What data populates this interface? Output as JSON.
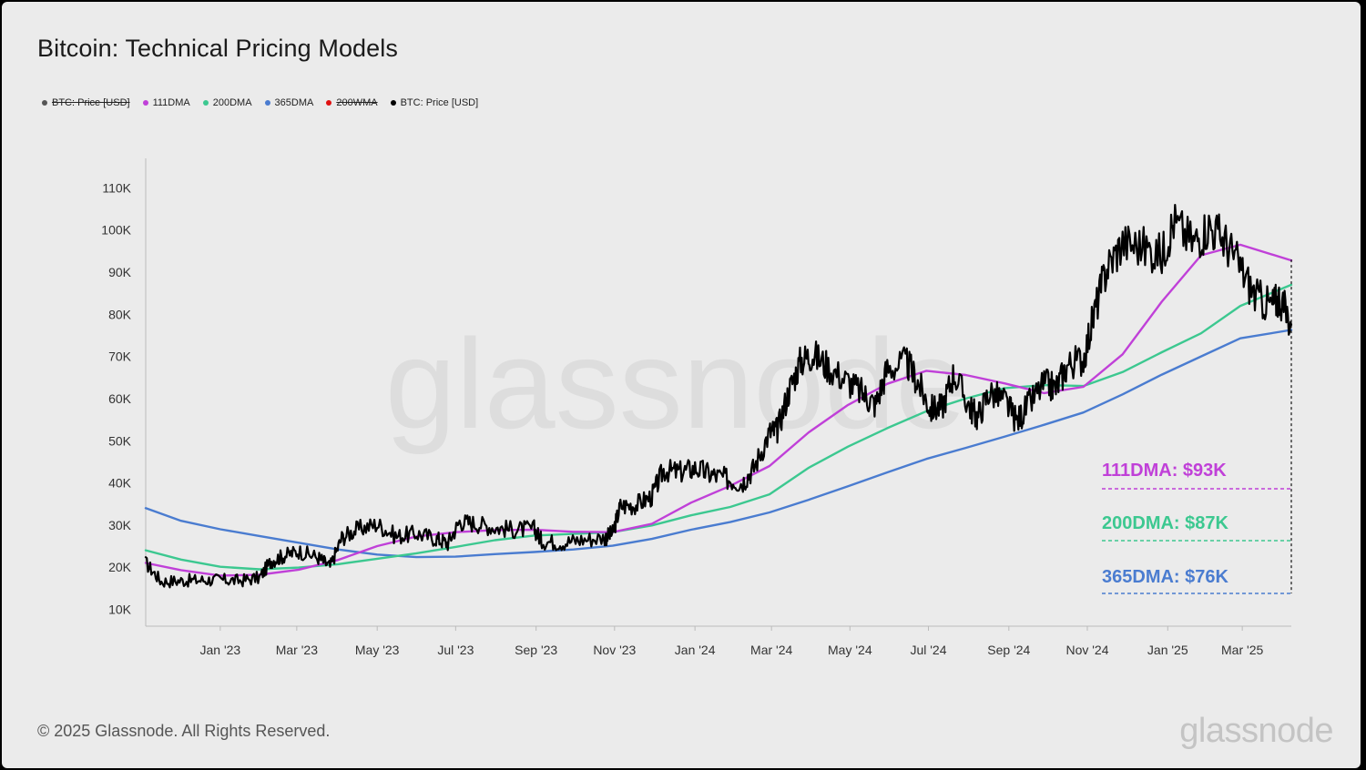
{
  "title": "Bitcoin: Technical Pricing Models",
  "legend": [
    {
      "label": "BTC: Price [USD]",
      "color": "#555555",
      "disabled": true
    },
    {
      "label": "111DMA",
      "color": "#c040d8",
      "disabled": false
    },
    {
      "label": "200DMA",
      "color": "#3cc890",
      "disabled": false
    },
    {
      "label": "365DMA",
      "color": "#4a7cd0",
      "disabled": false
    },
    {
      "label": "200WMA",
      "color": "#e01010",
      "disabled": true
    },
    {
      "label": "BTC: Price [USD]",
      "color": "#000000",
      "disabled": false
    }
  ],
  "footer": {
    "copyright": "© 2025 Glassnode. All Rights Reserved.",
    "brand": "glassnode"
  },
  "watermark": "glassnode",
  "chart_data": {
    "type": "line",
    "x_ticks": [
      {
        "label": "Jan '23",
        "t": 1.0
      },
      {
        "label": "Mar '23",
        "t": 2.95
      },
      {
        "label": "May '23",
        "t": 5.0
      },
      {
        "label": "Jul '23",
        "t": 7.0
      },
      {
        "label": "Sep '23",
        "t": 9.05
      },
      {
        "label": "Nov '23",
        "t": 11.05
      },
      {
        "label": "Jan '24",
        "t": 13.1
      },
      {
        "label": "Mar '24",
        "t": 15.05
      },
      {
        "label": "May '24",
        "t": 17.05
      },
      {
        "label": "Jul '24",
        "t": 19.05
      },
      {
        "label": "Sep '24",
        "t": 21.1
      },
      {
        "label": "Nov '24",
        "t": 23.1
      },
      {
        "label": "Jan '25",
        "t": 25.15
      },
      {
        "label": "Mar '25",
        "t": 27.05
      }
    ],
    "x_range": [
      -0.9,
      28.3
    ],
    "y_ticks": [
      {
        "label": "10K",
        "v": 10000
      },
      {
        "label": "20K",
        "v": 20000
      },
      {
        "label": "30K",
        "v": 30000
      },
      {
        "label": "40K",
        "v": 40000
      },
      {
        "label": "50K",
        "v": 50000
      },
      {
        "label": "60K",
        "v": 60000
      },
      {
        "label": "70K",
        "v": 70000
      },
      {
        "label": "80K",
        "v": 80000
      },
      {
        "label": "90K",
        "v": 90000
      },
      {
        "label": "100K",
        "v": 100000
      },
      {
        "label": "110K",
        "v": 110000
      }
    ],
    "ylim": [
      6000,
      117000
    ],
    "series": [
      {
        "name": "365DMA",
        "color": "#4a7cd0",
        "values": [
          [
            -0.9,
            34000
          ],
          [
            0,
            31000
          ],
          [
            1,
            29000
          ],
          [
            2,
            27400
          ],
          [
            3,
            25800
          ],
          [
            4,
            24200
          ],
          [
            5,
            23000
          ],
          [
            6,
            22400
          ],
          [
            7,
            22500
          ],
          [
            8,
            23100
          ],
          [
            9,
            23600
          ],
          [
            10,
            24200
          ],
          [
            11,
            25100
          ],
          [
            12,
            26700
          ],
          [
            13,
            28900
          ],
          [
            14,
            30700
          ],
          [
            15,
            33000
          ],
          [
            16,
            36000
          ],
          [
            17,
            39200
          ],
          [
            18,
            42500
          ],
          [
            19,
            45700
          ],
          [
            20,
            48300
          ],
          [
            21,
            51000
          ],
          [
            22,
            53800
          ],
          [
            23,
            56700
          ],
          [
            24,
            61000
          ],
          [
            25,
            65700
          ],
          [
            26,
            70000
          ],
          [
            27,
            74300
          ],
          [
            28.3,
            76300
          ]
        ]
      },
      {
        "name": "200DMA",
        "color": "#3cc890",
        "values": [
          [
            -0.9,
            24000
          ],
          [
            0,
            21800
          ],
          [
            1,
            20100
          ],
          [
            2,
            19500
          ],
          [
            3,
            19900
          ],
          [
            4,
            20700
          ],
          [
            5,
            22000
          ],
          [
            6,
            23300
          ],
          [
            7,
            24800
          ],
          [
            8,
            26400
          ],
          [
            9,
            27500
          ],
          [
            10,
            27900
          ],
          [
            11,
            28300
          ],
          [
            12,
            29900
          ],
          [
            13,
            32300
          ],
          [
            14,
            34300
          ],
          [
            15,
            37300
          ],
          [
            16,
            43600
          ],
          [
            17,
            48600
          ],
          [
            18,
            53000
          ],
          [
            19,
            57000
          ],
          [
            20,
            60000
          ],
          [
            21,
            62500
          ],
          [
            22,
            63200
          ],
          [
            23,
            63000
          ],
          [
            24,
            66300
          ],
          [
            25,
            71000
          ],
          [
            26,
            75500
          ],
          [
            27,
            82000
          ],
          [
            28.3,
            87000
          ]
        ]
      },
      {
        "name": "111DMA",
        "color": "#c040d8",
        "values": [
          [
            -0.9,
            21000
          ],
          [
            0,
            19300
          ],
          [
            1,
            18000
          ],
          [
            2,
            18200
          ],
          [
            3,
            19400
          ],
          [
            4,
            21700
          ],
          [
            5,
            25000
          ],
          [
            6,
            27300
          ],
          [
            7,
            28300
          ],
          [
            8,
            28800
          ],
          [
            9,
            28900
          ],
          [
            10,
            28400
          ],
          [
            11,
            28300
          ],
          [
            12,
            30300
          ],
          [
            13,
            35300
          ],
          [
            14,
            39300
          ],
          [
            15,
            44000
          ],
          [
            16,
            52000
          ],
          [
            17,
            58500
          ],
          [
            18,
            63500
          ],
          [
            19,
            66600
          ],
          [
            20,
            65600
          ],
          [
            21,
            63600
          ],
          [
            22,
            61300
          ],
          [
            23,
            62800
          ],
          [
            24,
            70500
          ],
          [
            25,
            83000
          ],
          [
            26,
            94000
          ],
          [
            27,
            96500
          ],
          [
            28.3,
            92800
          ]
        ]
      },
      {
        "name": "BTC: Price [USD]",
        "color": "#000000",
        "values": [
          [
            -0.9,
            21000
          ],
          [
            -0.5,
            16600
          ],
          [
            0,
            16800
          ],
          [
            0.5,
            16900
          ],
          [
            1,
            17000
          ],
          [
            1.5,
            16800
          ],
          [
            2,
            17500
          ],
          [
            2.3,
            21500
          ],
          [
            2.6,
            22600
          ],
          [
            3,
            23800
          ],
          [
            3.5,
            22300
          ],
          [
            3.8,
            20100
          ],
          [
            4.1,
            27000
          ],
          [
            4.5,
            29000
          ],
          [
            5,
            30200
          ],
          [
            5.5,
            27300
          ],
          [
            6,
            28000
          ],
          [
            6.5,
            26800
          ],
          [
            6.8,
            25700
          ],
          [
            7.1,
            30800
          ],
          [
            7.5,
            30400
          ],
          [
            8,
            29400
          ],
          [
            8.5,
            28900
          ],
          [
            9,
            29100
          ],
          [
            9.2,
            26200
          ],
          [
            9.7,
            25800
          ],
          [
            10.2,
            26500
          ],
          [
            10.8,
            27000
          ],
          [
            11.0,
            28000
          ],
          [
            11.2,
            34500
          ],
          [
            11.6,
            34800
          ],
          [
            12,
            36800
          ],
          [
            12.3,
            43000
          ],
          [
            12.7,
            42500
          ],
          [
            13.1,
            43500
          ],
          [
            13.5,
            42000
          ],
          [
            13.9,
            41000
          ],
          [
            14.3,
            40000
          ],
          [
            14.6,
            43500
          ],
          [
            15.0,
            52000
          ],
          [
            15.2,
            52500
          ],
          [
            15.5,
            62000
          ],
          [
            15.8,
            69000
          ],
          [
            16.1,
            70500
          ],
          [
            16.5,
            67500
          ],
          [
            17.0,
            64000
          ],
          [
            17.4,
            61000
          ],
          [
            17.7,
            58500
          ],
          [
            18.0,
            67000
          ],
          [
            18.5,
            68500
          ],
          [
            18.8,
            63500
          ],
          [
            19.1,
            57500
          ],
          [
            19.4,
            58000
          ],
          [
            19.7,
            66000
          ],
          [
            20.1,
            58000
          ],
          [
            20.3,
            55500
          ],
          [
            20.6,
            61500
          ],
          [
            21.0,
            59500
          ],
          [
            21.3,
            54500
          ],
          [
            21.6,
            58500
          ],
          [
            22.0,
            63500
          ],
          [
            22.3,
            62500
          ],
          [
            22.6,
            68000
          ],
          [
            23.0,
            69500
          ],
          [
            23.3,
            81000
          ],
          [
            23.6,
            91000
          ],
          [
            24.0,
            97000
          ],
          [
            24.5,
            96000
          ],
          [
            25.0,
            94000
          ],
          [
            25.3,
            102000
          ],
          [
            25.8,
            97000
          ],
          [
            26.2,
            101000
          ],
          [
            26.6,
            97500
          ],
          [
            27.0,
            91000
          ],
          [
            27.4,
            84000
          ],
          [
            27.8,
            82000
          ],
          [
            28.0,
            84000
          ],
          [
            28.3,
            77500
          ]
        ]
      }
    ],
    "annotations": [
      {
        "label": "111DMA: $93K",
        "value": 93000,
        "color": "#c040d8"
      },
      {
        "label": "200DMA: $87K",
        "value": 87000,
        "color": "#3cc890"
      },
      {
        "label": "365DMA: $76K",
        "value": 76000,
        "color": "#4a7cd0"
      }
    ]
  }
}
